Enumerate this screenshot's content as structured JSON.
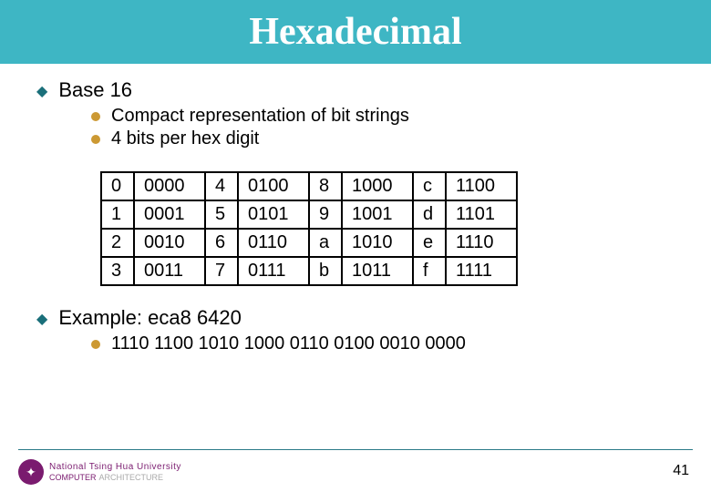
{
  "header": {
    "title": "Hexadecimal"
  },
  "main": {
    "bullet1": "Base 16",
    "sub1": "Compact representation of bit strings",
    "sub2": "4 bits per hex digit",
    "bullet2": "Example: eca8 6420",
    "example_bits": "1110 1100 1010 1000 0110 0100 0010 0000"
  },
  "table": {
    "rows": [
      {
        "h0": "0",
        "b0": "0000",
        "h1": "4",
        "b1": "0100",
        "h2": "8",
        "b2": "1000",
        "h3": "c",
        "b3": "1100"
      },
      {
        "h0": "1",
        "b0": "0001",
        "h1": "5",
        "b1": "0101",
        "h2": "9",
        "b2": "1001",
        "h3": "d",
        "b3": "1101"
      },
      {
        "h0": "2",
        "b0": "0010",
        "h1": "6",
        "b1": "0110",
        "h2": "a",
        "b2": "1010",
        "h3": "e",
        "b3": "1110"
      },
      {
        "h0": "3",
        "b0": "0011",
        "h1": "7",
        "b1": "0111",
        "h2": "b",
        "b2": "1011",
        "h3": "f",
        "b3": "1111"
      }
    ]
  },
  "footer": {
    "university": "National Tsing Hua University",
    "dept": "COMPUTER",
    "arch": "ARCHITECTURE",
    "page": "41"
  }
}
